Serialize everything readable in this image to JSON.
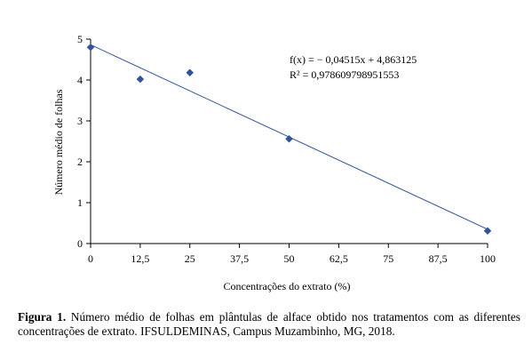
{
  "chart_data": {
    "type": "scatter",
    "xlabel": "Concentrações do extrato (%)",
    "ylabel": "Número médio de folhas",
    "xlim": [
      0,
      100
    ],
    "ylim": [
      0,
      5
    ],
    "x_ticks": [
      "0",
      "12,5",
      "25",
      "37,5",
      "50",
      "62,5",
      "75",
      "87,5",
      "100"
    ],
    "y_ticks": [
      "0",
      "1",
      "2",
      "3",
      "4",
      "5"
    ],
    "grid": false,
    "series": [
      {
        "x": [
          0,
          12.5,
          25,
          50,
          100
        ],
        "y": [
          4.8,
          4.02,
          4.18,
          2.56,
          0.31
        ],
        "marker": "diamond",
        "color": "#2f5597"
      }
    ],
    "trendline": {
      "slope": -0.04515,
      "intercept": 4.863125,
      "color": "#2f5597",
      "equation": "f(x) = − 0,04515x + 4,863125",
      "r_squared": "R² = 0,978609798951553"
    }
  },
  "caption": {
    "label": "Figura 1.",
    "text": " Número médio de folhas em plântulas de alface obtido nos tratamentos com as diferentes concentrações de extrato. IFSULDEMINAS, Campus Muzambinho, MG, 2018."
  }
}
